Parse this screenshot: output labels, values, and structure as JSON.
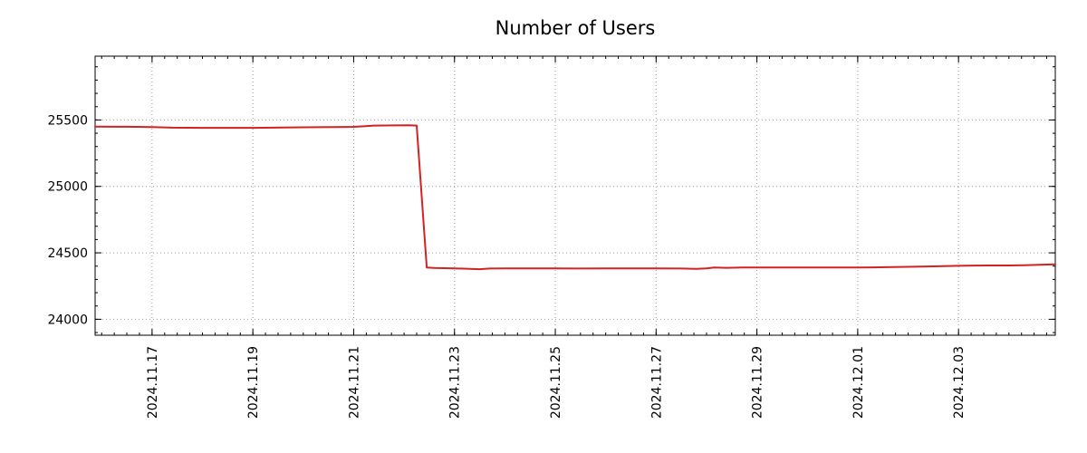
{
  "page": {
    "background": "#ffffff",
    "plot_border_color": "#000000",
    "grid_color": "#9a9a9a"
  },
  "chart_data": {
    "type": "line",
    "title": "Number of Users",
    "xlabel": "",
    "ylabel": "",
    "grid": true,
    "legend": "none",
    "x_encoding": "day index of Nov 2024; values above 30 are Dec (31 = 2024.12.01)",
    "xlim": [
      15.87,
      34.92
    ],
    "ylim": [
      23880,
      25980
    ],
    "x_ticks": [
      {
        "x": 17,
        "label": "2024.11.17"
      },
      {
        "x": 19,
        "label": "2024.11.19"
      },
      {
        "x": 21,
        "label": "2024.11.21"
      },
      {
        "x": 23,
        "label": "2024.11.23"
      },
      {
        "x": 25,
        "label": "2024.11.25"
      },
      {
        "x": 27,
        "label": "2024.11.27"
      },
      {
        "x": 29,
        "label": "2024.11.29"
      },
      {
        "x": 31,
        "label": "2024.12.01"
      },
      {
        "x": 33,
        "label": "2024.12.03"
      }
    ],
    "x_minor_step": 0.25,
    "y_ticks": [
      24000,
      24500,
      25000,
      25500
    ],
    "y_minor_step": 100,
    "series": [
      {
        "name": "Number of Users",
        "color": "#d22222",
        "line_width": 2,
        "points": [
          [
            15.87,
            25450
          ],
          [
            16.5,
            25449
          ],
          [
            17.0,
            25447
          ],
          [
            17.4,
            25442
          ],
          [
            18.0,
            25441
          ],
          [
            18.6,
            25441
          ],
          [
            19.0,
            25441
          ],
          [
            19.6,
            25443
          ],
          [
            20.0,
            25445
          ],
          [
            20.6,
            25447
          ],
          [
            21.0,
            25448
          ],
          [
            21.2,
            25452
          ],
          [
            21.4,
            25458
          ],
          [
            21.8,
            25459
          ],
          [
            22.1,
            25460
          ],
          [
            22.25,
            25458
          ],
          [
            22.45,
            24390
          ],
          [
            22.6,
            24386
          ],
          [
            23.0,
            24383
          ],
          [
            23.3,
            24379
          ],
          [
            23.5,
            24377
          ],
          [
            23.7,
            24382
          ],
          [
            24.0,
            24383
          ],
          [
            24.5,
            24383
          ],
          [
            25.0,
            24383
          ],
          [
            25.5,
            24382
          ],
          [
            26.0,
            24383
          ],
          [
            26.5,
            24383
          ],
          [
            27.0,
            24383
          ],
          [
            27.5,
            24382
          ],
          [
            27.8,
            24379
          ],
          [
            28.0,
            24383
          ],
          [
            28.15,
            24390
          ],
          [
            28.4,
            24387
          ],
          [
            28.7,
            24389
          ],
          [
            29.0,
            24390
          ],
          [
            29.5,
            24390
          ],
          [
            30.0,
            24390
          ],
          [
            30.5,
            24390
          ],
          [
            31.0,
            24390
          ],
          [
            31.3,
            24391
          ],
          [
            31.7,
            24393
          ],
          [
            32.0,
            24395
          ],
          [
            32.5,
            24398
          ],
          [
            33.0,
            24402
          ],
          [
            33.3,
            24404
          ],
          [
            33.6,
            24405
          ],
          [
            34.0,
            24405
          ],
          [
            34.3,
            24407
          ],
          [
            34.6,
            24410
          ],
          [
            34.92,
            24414
          ]
        ]
      }
    ]
  }
}
